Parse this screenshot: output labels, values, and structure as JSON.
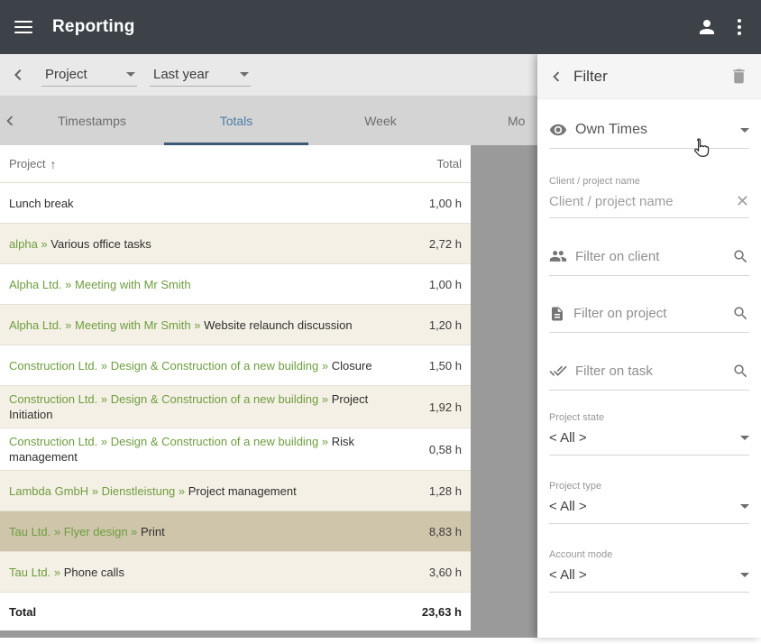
{
  "colors": {
    "appbar": "#3c4247",
    "project_green": "#6d9e3f",
    "tab_active": "#4b7ca6",
    "tab_underline": "#3d5a74",
    "row_stripe": "#f5f0e5",
    "row_highlight": "#cfc5aa"
  },
  "app_bar": {
    "title": "Reporting"
  },
  "toolbar": {
    "report_type": "Project",
    "date_range": "Last year"
  },
  "tabs": [
    {
      "label": "Timestamps",
      "active": false
    },
    {
      "label": "Totals",
      "active": true
    },
    {
      "label": "Week",
      "active": false
    },
    {
      "label": "Mo",
      "active": false
    }
  ],
  "table": {
    "header": {
      "project": "Project",
      "total": "Total",
      "sort_arrow": "↑"
    },
    "rows": [
      {
        "segments": [
          {
            "text": "Lunch break",
            "green": false
          }
        ],
        "total": "1,00 h",
        "highlight": false
      },
      {
        "segments": [
          {
            "text": "alpha",
            "green": true
          },
          {
            "text": " » ",
            "green": true
          },
          {
            "text": "Various office tasks",
            "green": false
          }
        ],
        "total": "2,72 h",
        "highlight": false
      },
      {
        "segments": [
          {
            "text": "Alpha Ltd.",
            "green": true
          },
          {
            "text": " » ",
            "green": true
          },
          {
            "text": "Meeting with Mr Smith",
            "green": true
          }
        ],
        "total": "1,00 h",
        "highlight": false
      },
      {
        "segments": [
          {
            "text": "Alpha Ltd.",
            "green": true
          },
          {
            "text": " » ",
            "green": true
          },
          {
            "text": "Meeting with Mr Smith",
            "green": true
          },
          {
            "text": " » ",
            "green": true
          },
          {
            "text": "Website relaunch discussion",
            "green": false
          }
        ],
        "total": "1,20 h",
        "highlight": false
      },
      {
        "segments": [
          {
            "text": "Construction Ltd.",
            "green": true
          },
          {
            "text": " » ",
            "green": true
          },
          {
            "text": "Design & Construction of a new building",
            "green": true
          },
          {
            "text": " » ",
            "green": true
          },
          {
            "text": "Closure",
            "green": false
          }
        ],
        "total": "1,50 h",
        "highlight": false
      },
      {
        "segments": [
          {
            "text": "Construction Ltd.",
            "green": true
          },
          {
            "text": " » ",
            "green": true
          },
          {
            "text": "Design & Construction of a new building",
            "green": true
          },
          {
            "text": " » ",
            "green": true
          },
          {
            "text": "Project Initiation",
            "green": false
          }
        ],
        "total": "1,92 h",
        "highlight": false
      },
      {
        "segments": [
          {
            "text": "Construction Ltd.",
            "green": true
          },
          {
            "text": " » ",
            "green": true
          },
          {
            "text": "Design & Construction of a new building",
            "green": true
          },
          {
            "text": " » ",
            "green": true
          },
          {
            "text": "Risk management",
            "green": false
          }
        ],
        "total": "0,58 h",
        "highlight": false
      },
      {
        "segments": [
          {
            "text": "Lambda GmbH",
            "green": true
          },
          {
            "text": " » ",
            "green": true
          },
          {
            "text": "Dienstleistung",
            "green": true
          },
          {
            "text": " » ",
            "green": true
          },
          {
            "text": "Project management",
            "green": false
          }
        ],
        "total": "1,28 h",
        "highlight": false
      },
      {
        "segments": [
          {
            "text": "Tau Ltd.",
            "green": true
          },
          {
            "text": " » ",
            "green": true
          },
          {
            "text": "Flyer design",
            "green": true
          },
          {
            "text": " » ",
            "green": true
          },
          {
            "text": "Print",
            "green": false
          }
        ],
        "total": "8,83 h",
        "highlight": true
      },
      {
        "segments": [
          {
            "text": "Tau Ltd.",
            "green": true
          },
          {
            "text": " » ",
            "green": true
          },
          {
            "text": "Phone calls",
            "green": false
          }
        ],
        "total": "3,60 h",
        "highlight": false
      }
    ],
    "footer": {
      "label": "Total",
      "value": "23,63 h"
    }
  },
  "filter": {
    "title": "Filter",
    "times_select": "Own Times",
    "client_project_label": "Client / project name",
    "client_project_placeholder": "Client / project name",
    "client": "Filter on client",
    "project": "Filter on project",
    "task": "Filter on task",
    "project_state_label": "Project state",
    "project_state_value": "< All >",
    "project_type_label": "Project type",
    "project_type_value": "< All >",
    "account_mode_label": "Account mode",
    "account_mode_value": "< All >"
  }
}
